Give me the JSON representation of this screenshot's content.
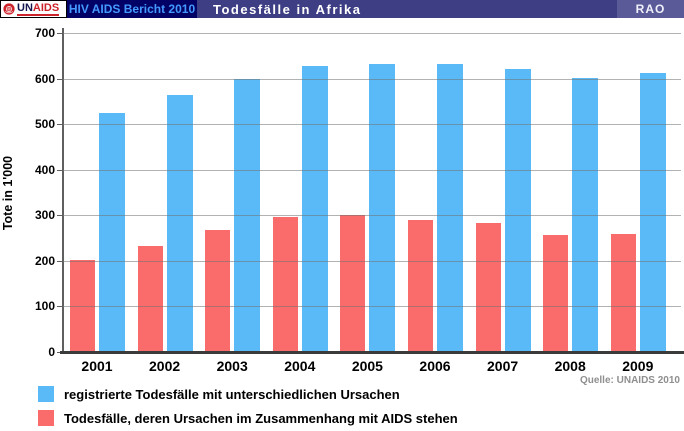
{
  "header": {
    "logo": {
      "un": "UN",
      "aids": "AIDS"
    },
    "report_label": "HIV AIDS Bericht 2010",
    "title": "Todesfälle in Afrika",
    "badge": "RAO"
  },
  "chart_data": {
    "type": "bar",
    "categories": [
      "2001",
      "2002",
      "2003",
      "2004",
      "2005",
      "2006",
      "2007",
      "2008",
      "2009"
    ],
    "series": [
      {
        "key": "registered",
        "name": "registrierte Todesfälle mit unterschiedlichen Ursachen",
        "color": "#59baf7",
        "values": [
          525,
          565,
          600,
          627,
          633,
          633,
          622,
          602,
          613
        ]
      },
      {
        "key": "aids",
        "name": "Todesfälle, deren Ursachen im Zusammenhang mit AIDS stehen",
        "color": "#fa6b6b",
        "values": [
          202,
          232,
          268,
          296,
          300,
          290,
          282,
          257,
          260
        ]
      }
    ],
    "xlabel": "",
    "ylabel": "Tote in 1'000",
    "ylim": [
      0,
      700
    ],
    "ytick_step": 100,
    "grid": true,
    "legend_position": "bottom",
    "source": "Quelle: UNAIDS 2010"
  }
}
